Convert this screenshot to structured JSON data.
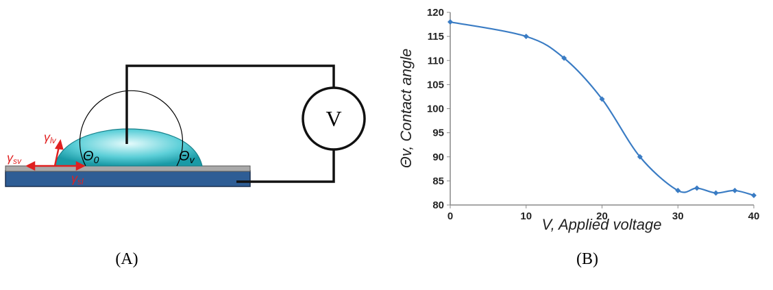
{
  "chart_data": {
    "type": "line",
    "xlabel": "V, Applied voltage",
    "ylabel": "Θv, Contact angle",
    "x": [
      0,
      10,
      15,
      20,
      25,
      30,
      32.5,
      35,
      37.5,
      40
    ],
    "values": [
      118,
      115,
      110.5,
      102,
      90,
      83,
      83.5,
      82.5,
      83,
      82
    ],
    "color": "#3a7cc4",
    "xlim": [
      0,
      40
    ],
    "xticks": [
      0,
      10,
      20,
      30,
      40
    ],
    "ylim": [
      80,
      120
    ],
    "yticks": [
      80,
      85,
      90,
      95,
      100,
      105,
      110,
      115,
      120
    ]
  },
  "diagram": {
    "meter": "V",
    "theta0": {
      "symbol": "Θ",
      "sub": "0"
    },
    "thetav": {
      "symbol": "Θ",
      "sub": "v"
    },
    "gamma_lv": {
      "symbol": "γ",
      "sub": "lv"
    },
    "gamma_sv": {
      "symbol": "γ",
      "sub": "sv"
    },
    "gamma_sl": {
      "symbol": "γ",
      "sub": "sl"
    }
  },
  "captions": [
    "(A)",
    "(B)"
  ]
}
